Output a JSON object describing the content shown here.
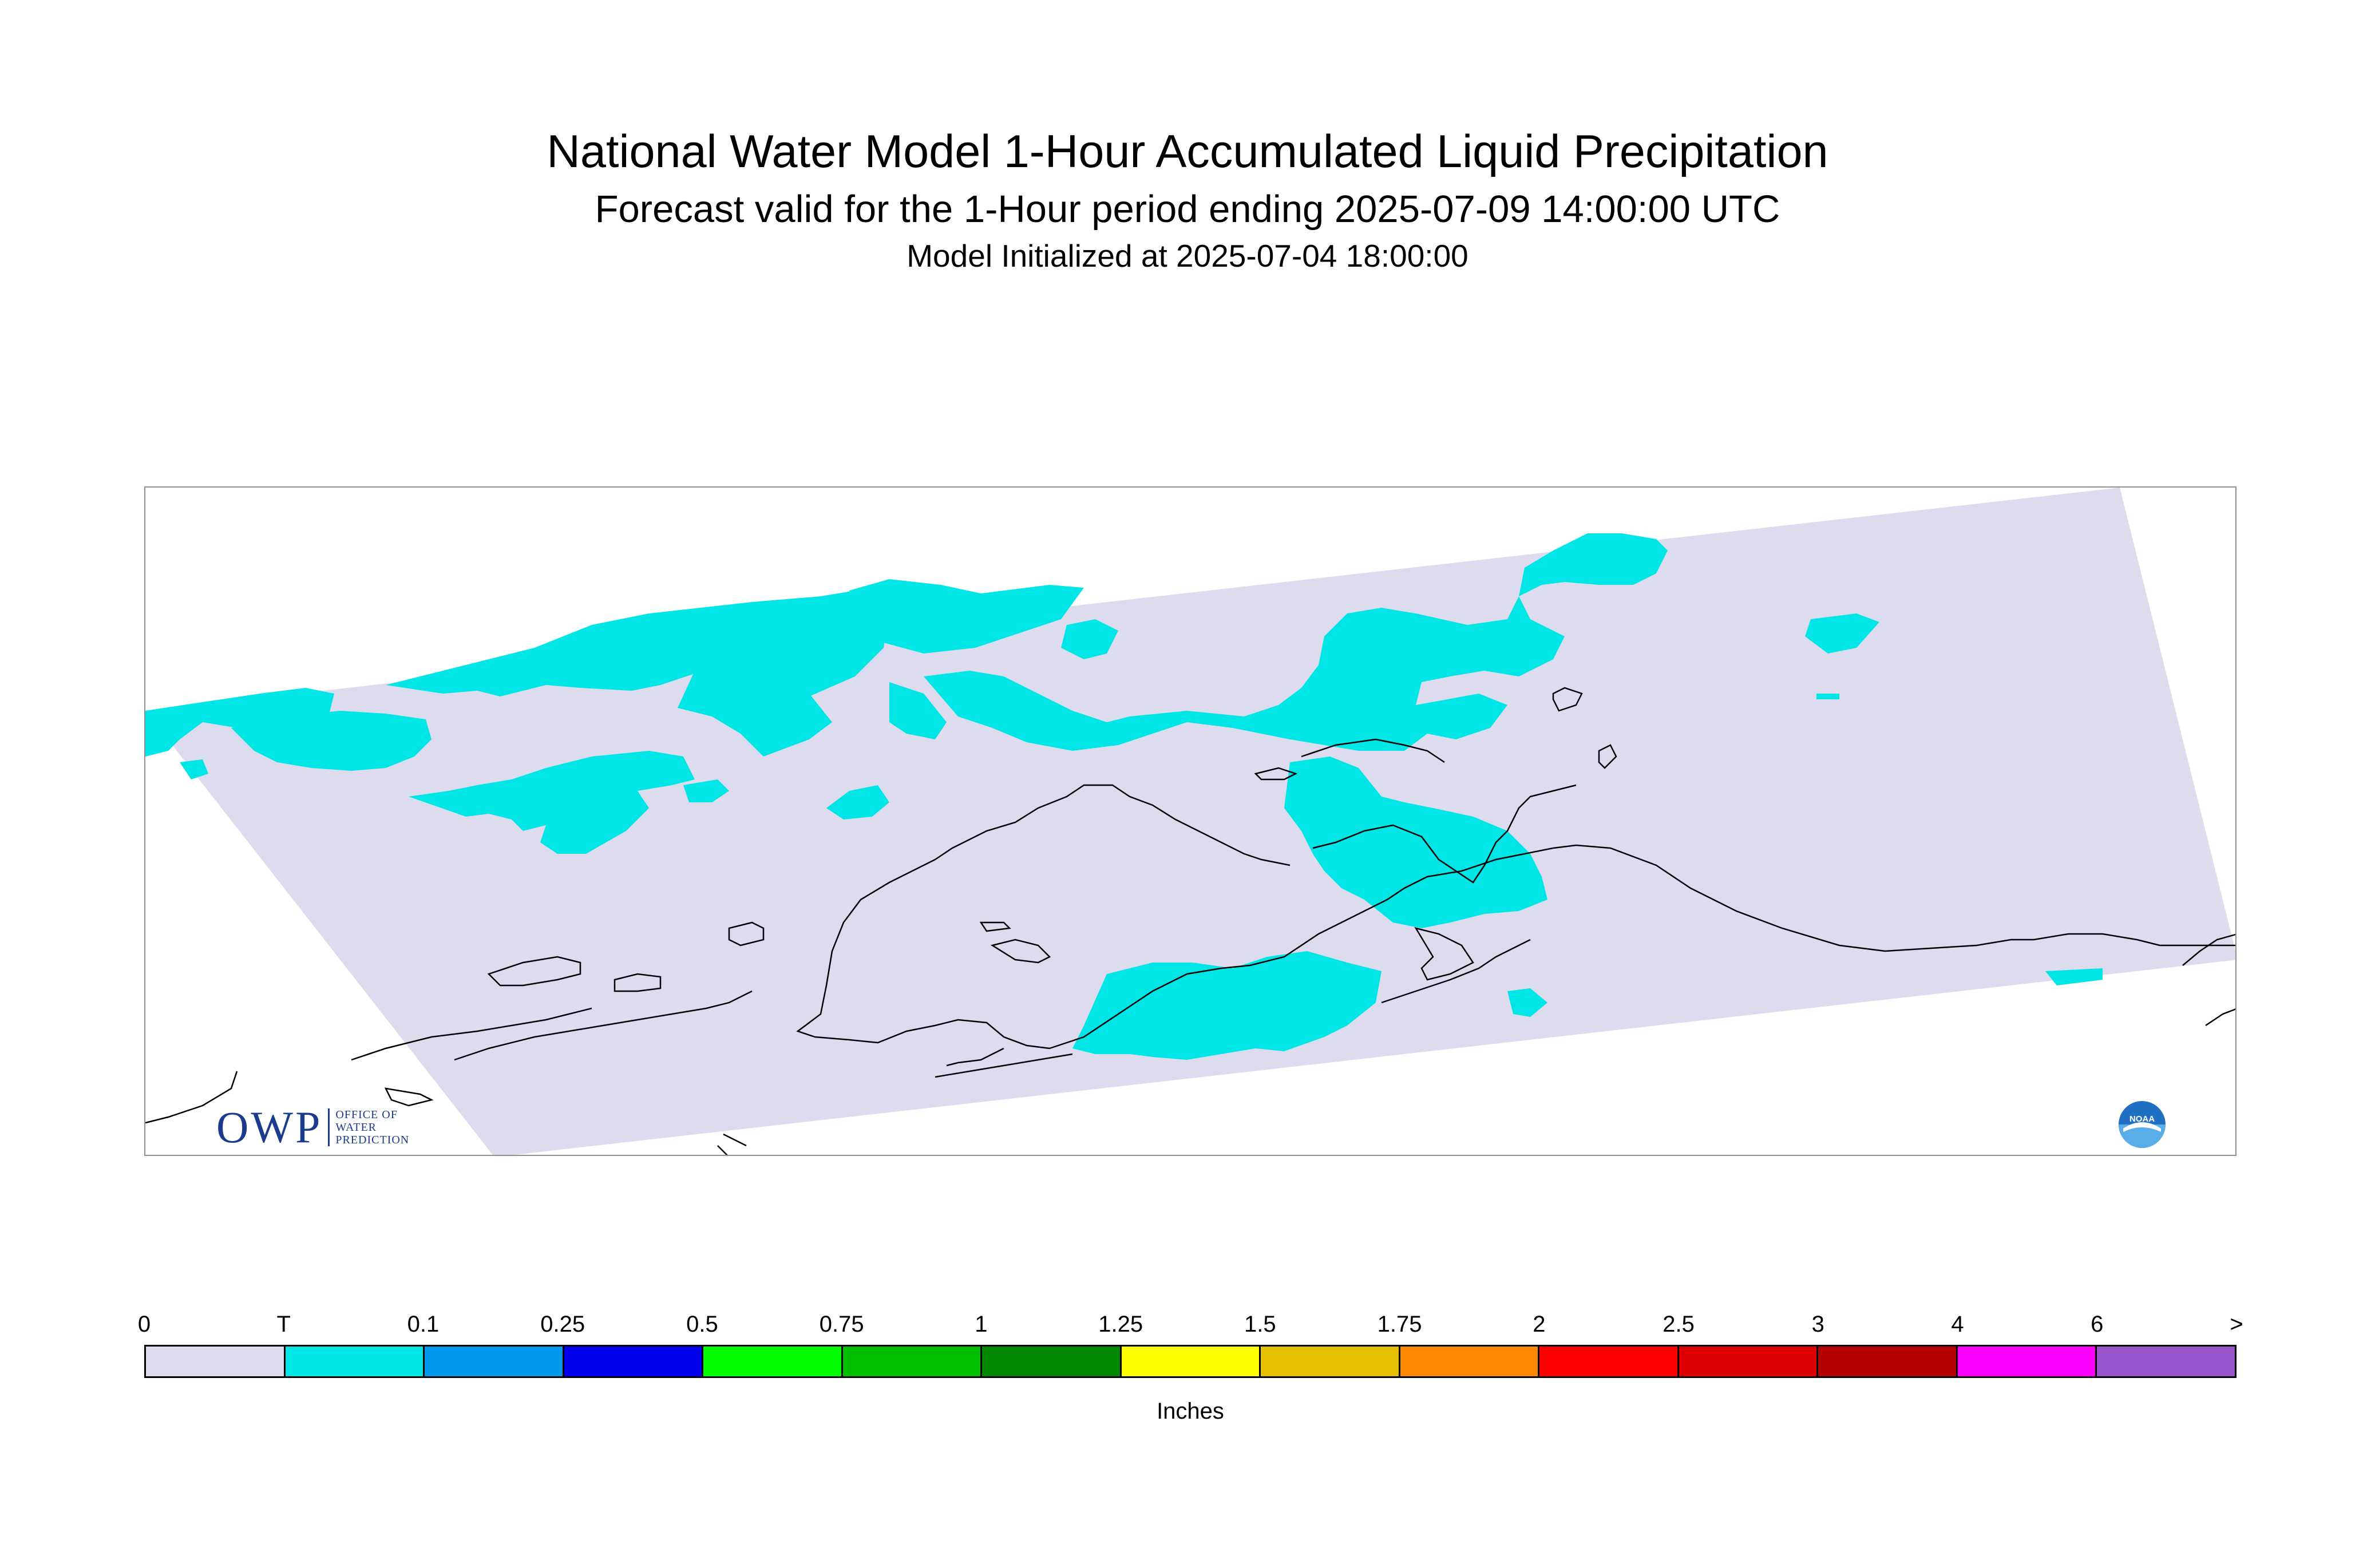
{
  "title": {
    "main": "National Water Model 1-Hour Accumulated Liquid Precipitation",
    "subtitle": "Forecast valid for the 1-Hour period ending 2025-07-09 14:00:00 UTC",
    "initialized": "Model Initialized at 2025-07-04 18:00:00"
  },
  "map": {
    "domain_fill_color": "#dcdcee",
    "precip_fill_color": "#00e5e5",
    "coastline_color": "#000000",
    "frame_color": "#909090",
    "precip_category": "T"
  },
  "logos": {
    "owp_mark": "OWP",
    "owp_text": [
      "OFFICE OF",
      "WATER",
      "PREDICTION"
    ],
    "noaa_text": "NOAA",
    "noaa_icon": "noaa-icon"
  },
  "legend": {
    "units": "Inches",
    "labels": [
      "0",
      "T",
      "0.1",
      "0.25",
      "0.5",
      "0.75",
      "1",
      "1.25",
      "1.5",
      "1.75",
      "2",
      "2.5",
      "3",
      "4",
      "6",
      ">"
    ],
    "colors": [
      "#dcdcee",
      "#00e5e5",
      "#0099ee",
      "#0000ee",
      "#00ff00",
      "#00c000",
      "#008800",
      "#ffff00",
      "#e5bf00",
      "#ff8800",
      "#ff0000",
      "#dd0000",
      "#b40000",
      "#ff00ff",
      "#9955cc"
    ]
  }
}
